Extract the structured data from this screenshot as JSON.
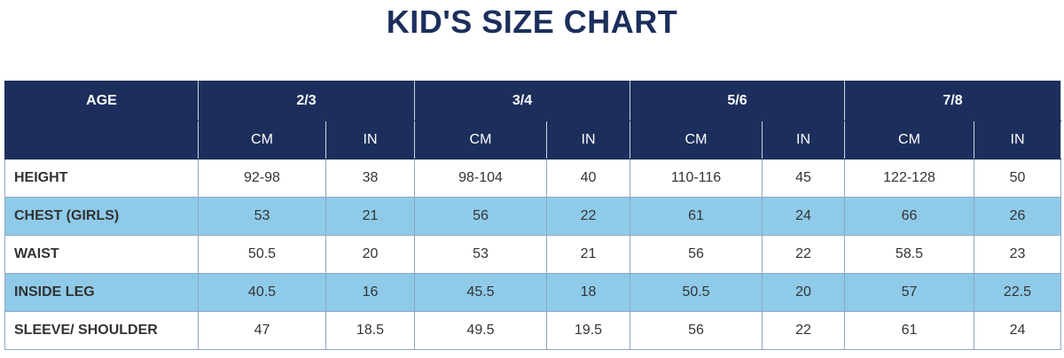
{
  "title": "KID'S SIZE CHART",
  "header": {
    "age_label": "AGE",
    "age_groups": [
      "2/3",
      "3/4",
      "5/6",
      "7/8"
    ],
    "units": [
      "CM",
      "IN",
      "CM",
      "IN",
      "CM",
      "IN",
      "CM",
      "IN"
    ]
  },
  "rows": [
    {
      "label": "HEIGHT",
      "values": [
        "92-98",
        "38",
        "98-104",
        "40",
        "110-116",
        "45",
        "122-128",
        "50"
      ]
    },
    {
      "label": "CHEST (GIRLS)",
      "values": [
        "53",
        "21",
        "56",
        "22",
        "61",
        "24",
        "66",
        "26"
      ]
    },
    {
      "label": "WAIST",
      "values": [
        "50.5",
        "20",
        "53",
        "21",
        "56",
        "22",
        "58.5",
        "23"
      ]
    },
    {
      "label": "INSIDE LEG",
      "values": [
        "40.5",
        "16",
        "45.5",
        "18",
        "50.5",
        "20",
        "57",
        "22.5"
      ]
    },
    {
      "label": "SLEEVE/ SHOULDER",
      "values": [
        "47",
        "18.5",
        "49.5",
        "19.5",
        "56",
        "22",
        "61",
        "24"
      ]
    }
  ],
  "colors": {
    "header_bg": "#1c2f5c",
    "shaded_row_bg": "#8fcbe9",
    "title_color": "#1c2f5c"
  }
}
